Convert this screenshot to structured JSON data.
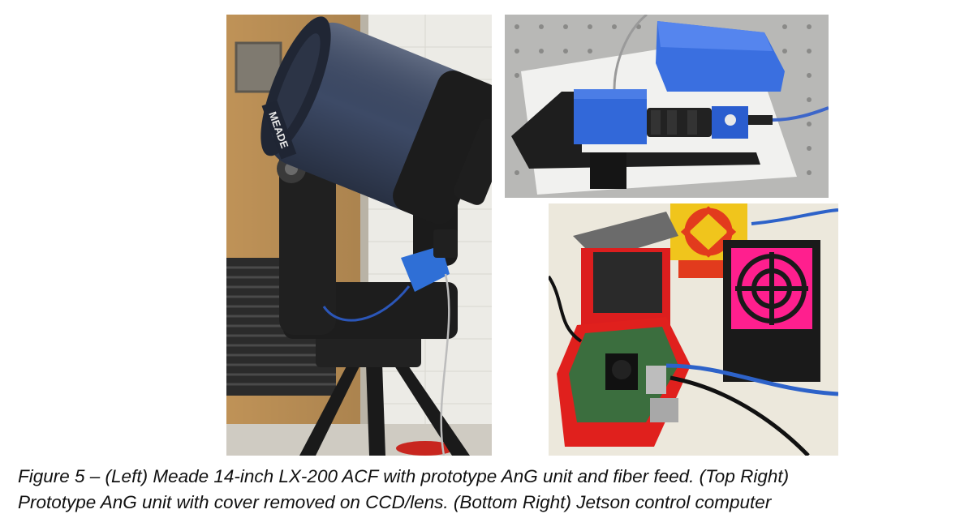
{
  "figure": {
    "caption_lines": [
      "Figure 5 – (Left) Meade 14-inch LX-200 ACF with prototype AnG unit and fiber feed. (Top Right)",
      "Prototype AnG unit with cover removed on CCD/lens. (Bottom Right) Jetson control computer"
    ],
    "photos": {
      "left": {
        "logo_text": "MEADE"
      },
      "top_right": {},
      "bottom_right": {}
    }
  }
}
